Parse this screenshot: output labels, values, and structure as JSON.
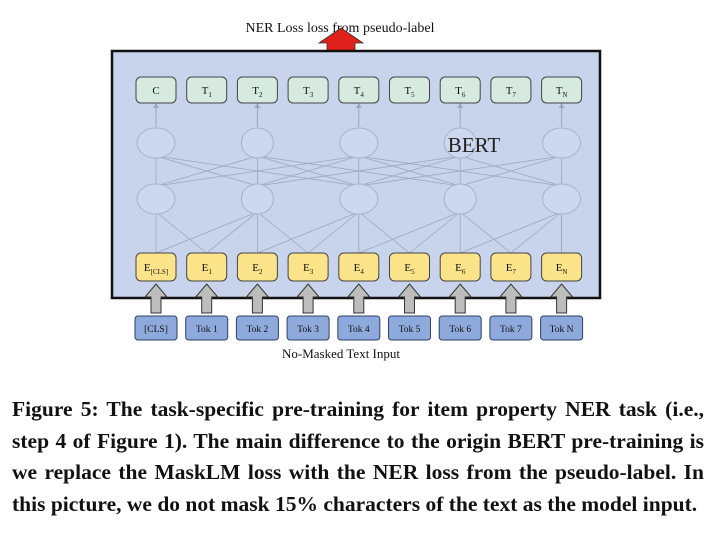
{
  "diagram": {
    "top_label": "NER Loss loss from pseudo-label",
    "bottom_label": "No-Masked Text Input",
    "model_name": "BERT",
    "outputs": [
      {
        "main": "C",
        "sub": ""
      },
      {
        "main": "T",
        "sub": "1"
      },
      {
        "main": "T",
        "sub": "2"
      },
      {
        "main": "T",
        "sub": "3"
      },
      {
        "main": "T",
        "sub": "4"
      },
      {
        "main": "T",
        "sub": "5"
      },
      {
        "main": "T",
        "sub": "6"
      },
      {
        "main": "T",
        "sub": "7"
      },
      {
        "main": "T",
        "sub": "N"
      }
    ],
    "embeddings": [
      {
        "main": "E",
        "sub": "[CLS]"
      },
      {
        "main": "E",
        "sub": "1"
      },
      {
        "main": "E",
        "sub": "2"
      },
      {
        "main": "E",
        "sub": "3"
      },
      {
        "main": "E",
        "sub": "4"
      },
      {
        "main": "E",
        "sub": "5"
      },
      {
        "main": "E",
        "sub": "6"
      },
      {
        "main": "E",
        "sub": "7"
      },
      {
        "main": "E",
        "sub": "N"
      }
    ],
    "tokens": [
      "[CLS]",
      "Tok 1",
      "Tok 2",
      "Tok 3",
      "Tok 4",
      "Tok 5",
      "Tok 6",
      "Tok 7",
      "Tok N"
    ],
    "colors": {
      "panel": "#c7d4ec",
      "output_box": "#d6eadf",
      "embedding_box": "#fbe38a",
      "token_box": "#8ea9db",
      "loss_arrow": "#e0201b",
      "input_arrow": "#bdbdbd"
    }
  },
  "caption": {
    "text": "Figure 5: The task-specific pre-training for item property NER task (i.e., step 4 of Figure 1). The main difference to the origin BERT pre-training is we replace the MaskLM loss with the NER loss from the pseudo-label. In this picture, we do not mask 15% characters of the text as the model input."
  }
}
